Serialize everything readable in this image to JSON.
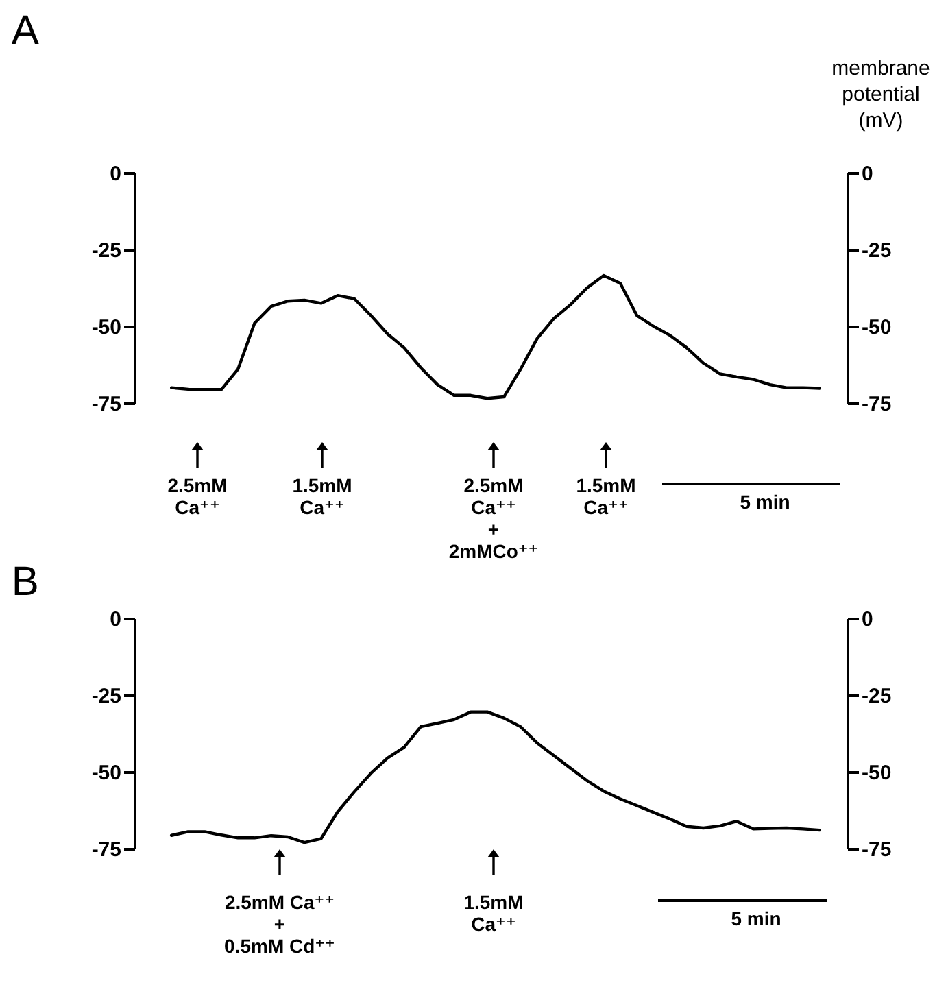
{
  "chart_data": [
    {
      "type": "line",
      "title": "A",
      "y2label": "membrane potential (mV)",
      "color": "#000000",
      "categories": [
        null,
        null,
        null,
        null,
        null,
        null,
        null,
        null,
        null,
        null,
        null,
        null,
        null,
        null,
        null,
        null,
        null,
        null,
        null,
        null,
        null,
        null,
        null,
        null,
        null,
        null,
        null,
        null,
        null,
        null,
        null,
        null,
        null,
        null,
        null,
        null,
        null,
        null,
        null,
        null
      ],
      "values": [
        -70,
        -70.5,
        -70.6,
        -70.6,
        -64,
        -49,
        -43.5,
        -41.8,
        -41.5,
        -42.5,
        -40,
        -41,
        -46.5,
        -52.5,
        -57,
        -63.5,
        -69,
        -72.5,
        -72.5,
        -73.5,
        -73,
        -64,
        -54,
        -47.5,
        -43,
        -37.5,
        -33.5,
        -36,
        -46.5,
        -50,
        -53,
        -57,
        -62,
        -65.5,
        -66.5,
        -67.3,
        -69,
        -70,
        -70,
        -70.2
      ],
      "ylim": [
        -75,
        0
      ],
      "yticks": [
        -75,
        -50,
        -25,
        0
      ],
      "y2lim": [
        -75,
        0
      ],
      "y2ticks": [
        -75,
        -50,
        -25,
        0
      ],
      "annotations": [
        "2.5mM\nCa⁺⁺",
        "1.5mM\nCa⁺⁺",
        "2.5mM\nCa⁺⁺\n+\n2mMCo⁺⁺",
        "1.5mM\nCa⁺⁺",
        "5 min"
      ]
    },
    {
      "type": "line",
      "title": "B",
      "color": "#000000",
      "categories": [
        null,
        null,
        null,
        null,
        null,
        null,
        null,
        null,
        null,
        null,
        null,
        null,
        null,
        null,
        null,
        null,
        null,
        null,
        null,
        null,
        null,
        null,
        null,
        null,
        null,
        null,
        null,
        null,
        null,
        null,
        null,
        null,
        null,
        null,
        null,
        null,
        null,
        null,
        null,
        null
      ],
      "values": [
        -70.7,
        -69.5,
        -69.5,
        -70.6,
        -71.5,
        -71.5,
        -70.8,
        -71.2,
        -73,
        -71.8,
        -63,
        -56.5,
        -50.5,
        -45.5,
        -42,
        -35.3,
        -34.2,
        -33,
        -30.5,
        -30.5,
        -32.5,
        -35.3,
        -40.6,
        -44.7,
        -48.8,
        -52.9,
        -56.3,
        -58.8,
        -61,
        -63.2,
        -65.4,
        -67.8,
        -68.3,
        -67.6,
        -66.1,
        -68.6,
        -68.4,
        -68.3,
        -68.6,
        -69
      ],
      "ylim": [
        -75,
        0
      ],
      "yticks": [
        -75,
        -50,
        -25,
        0
      ],
      "y2lim": [
        -75,
        0
      ],
      "y2ticks": [
        -75,
        -50,
        -25,
        0
      ],
      "annotations": [
        "2.5mM Ca⁺⁺\n+\n0.5mM Cd⁺⁺",
        "1.5mM\nCa⁺⁺",
        "5 min"
      ]
    }
  ]
}
